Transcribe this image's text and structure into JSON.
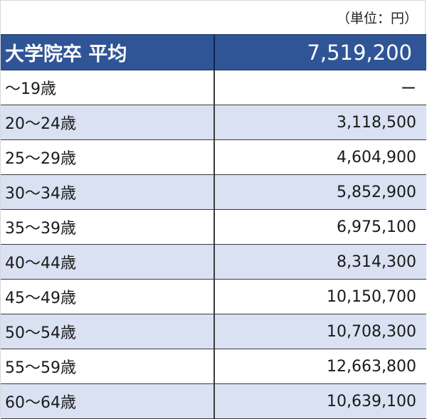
{
  "unit_note": "（単位：円）",
  "header": {
    "label": "大学院卒 平均",
    "value": "7,519,200"
  },
  "rows": [
    {
      "label": "〜19歳",
      "value": "ー"
    },
    {
      "label": "20〜24歳",
      "value": "3,118,500"
    },
    {
      "label": "25〜29歳",
      "value": "4,604,900"
    },
    {
      "label": "30〜34歳",
      "value": "5,852,900"
    },
    {
      "label": "35〜39歳",
      "value": "6,975,100"
    },
    {
      "label": "40〜44歳",
      "value": "8,314,300"
    },
    {
      "label": "45〜49歳",
      "value": "10,150,700"
    },
    {
      "label": "50〜54歳",
      "value": "10,708,300"
    },
    {
      "label": "55〜59歳",
      "value": "12,663,800"
    },
    {
      "label": "60〜64歳",
      "value": "10,639,100"
    }
  ],
  "colors": {
    "header_bg": "#2f5597",
    "header_text": "#ffffff",
    "shaded_row_bg": "#d9e1f2",
    "plain_row_bg": "#ffffff",
    "border": "#3a3a3a"
  }
}
